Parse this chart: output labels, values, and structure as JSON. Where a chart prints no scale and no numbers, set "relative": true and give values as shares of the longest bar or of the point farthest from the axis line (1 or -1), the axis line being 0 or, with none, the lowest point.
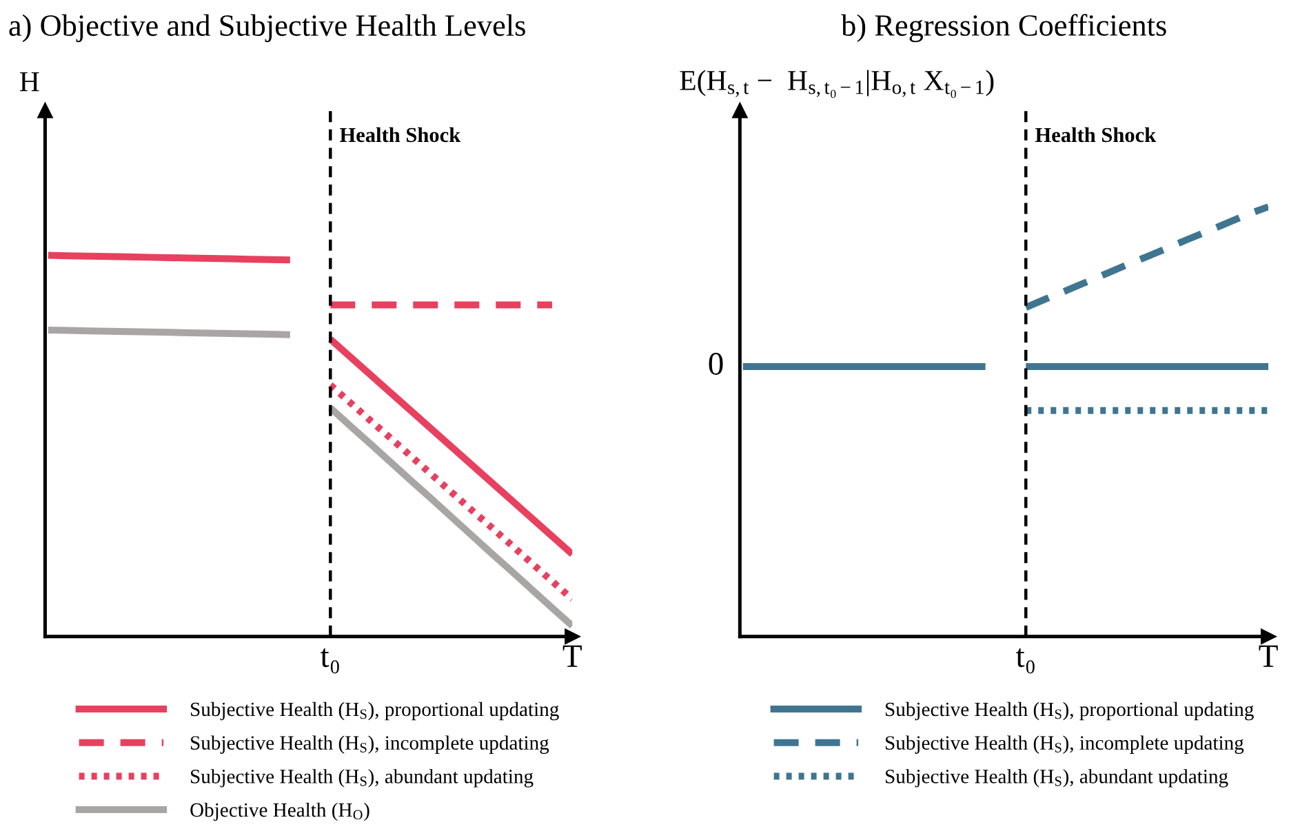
{
  "chart_data": [
    {
      "type": "line",
      "title": "a) Objective and Subjective Health Levels",
      "ylabel": "H",
      "relative": true,
      "categories": [
        null,
        null,
        null,
        null,
        null,
        null,
        null,
        null,
        null,
        null,
        null,
        null,
        null,
        null,
        "t₀",
        null,
        null,
        null,
        null,
        null,
        null,
        null,
        null,
        null,
        null,
        null,
        "T"
      ],
      "tick_labels": "x",
      "legend": "bottom",
      "grid": false,
      "ref_lines": [
        {
          "axis": "x",
          "value": "t₀",
          "label": "Health Shock",
          "color": "#000000",
          "line_style": "dashed"
        }
      ],
      "series": [
        {
          "name": "Subjective Health (H$_{S}$), proportional updating",
          "color": "#e8405f",
          "line_style": "solid",
          "values": [
            1.0,
            0.999,
            0.998,
            0.997,
            0.996,
            0.995,
            0.994,
            0.993,
            0.992,
            0.991,
            0.99,
            0.989,
            0.988,
            null,
            0.78,
            0.733,
            0.686,
            0.639,
            0.592,
            0.545,
            0.498,
            0.451,
            0.404,
            0.357,
            0.31,
            0.263,
            0.216
          ]
        },
        {
          "name": "Subjective Health (H$_{S}$), incomplete updating",
          "color": "#e8405f",
          "line_style": "dashed",
          "values": [
            null,
            null,
            null,
            null,
            null,
            null,
            null,
            null,
            null,
            null,
            null,
            null,
            null,
            null,
            0.87,
            0.87,
            0.87,
            0.87,
            0.87,
            0.87,
            0.87,
            0.87,
            0.87,
            0.87,
            0.87,
            0.87,
            null
          ]
        },
        {
          "name": "Subjective Health (H$_{S}$), abundant updating",
          "color": "#e8405f",
          "line_style": "dotted",
          "values": [
            null,
            null,
            null,
            null,
            null,
            null,
            null,
            null,
            null,
            null,
            null,
            null,
            null,
            null,
            0.66,
            0.613,
            0.566,
            0.52,
            0.473,
            0.426,
            0.379,
            0.332,
            0.286,
            0.239,
            0.192,
            0.145,
            0.098
          ]
        },
        {
          "name": "Objective Health (H$_{O}$)",
          "color": "#aaa5a5",
          "line_style": "solid",
          "values": [
            0.804,
            0.803,
            0.802,
            0.801,
            0.8,
            0.799,
            0.798,
            0.797,
            0.796,
            0.795,
            0.794,
            0.793,
            0.792,
            null,
            0.6,
            0.552,
            0.505,
            0.457,
            0.409,
            0.362,
            0.314,
            0.266,
            0.218,
            0.171,
            0.123,
            0.075,
            0.028
          ]
        }
      ]
    },
    {
      "type": "line",
      "title": "b) Regression Coefficients",
      "ylabel": "E(H$_{s,t}$ −  H$_{s,t₀−1}$|H$_{o,t}$ X$_{t₀−1}$)",
      "relative": true,
      "categories": [
        null,
        null,
        null,
        null,
        null,
        null,
        null,
        null,
        null,
        null,
        null,
        null,
        null,
        null,
        "t₀",
        null,
        null,
        null,
        null,
        null,
        null,
        null,
        null,
        null,
        null,
        null,
        "T"
      ],
      "tick_labels": "x",
      "legend": "bottom",
      "grid": false,
      "annotations": [
        "0"
      ],
      "ref_lines": [
        {
          "axis": "x",
          "value": "t₀",
          "label": "Health Shock",
          "color": "#000000",
          "line_style": "dashed"
        }
      ],
      "series": [
        {
          "name": "Subjective Health (H$_{S}$), proportional updating",
          "color": "#3f7591",
          "line_style": "solid",
          "values": [
            0.628,
            0.628,
            0.628,
            0.628,
            0.628,
            0.628,
            0.628,
            0.628,
            0.628,
            0.628,
            0.628,
            0.628,
            0.628,
            null,
            0.628,
            0.628,
            0.628,
            0.628,
            0.628,
            0.628,
            0.628,
            0.628,
            0.628,
            0.628,
            0.628,
            0.628,
            0.628
          ]
        },
        {
          "name": "Subjective Health (H$_{S}$), incomplete updating",
          "color": "#3f7591",
          "line_style": "dashed",
          "values": [
            null,
            null,
            null,
            null,
            null,
            null,
            null,
            null,
            null,
            null,
            null,
            null,
            null,
            null,
            0.766,
            0.786,
            0.805,
            0.825,
            0.845,
            0.865,
            0.884,
            0.904,
            0.924,
            0.943,
            0.963,
            0.983,
            1.0
          ]
        },
        {
          "name": "Subjective Health (H$_{S}$), abundant updating",
          "color": "#3f7591",
          "line_style": "dotted",
          "values": [
            null,
            null,
            null,
            null,
            null,
            null,
            null,
            null,
            null,
            null,
            null,
            null,
            null,
            null,
            0.526,
            0.526,
            0.526,
            0.526,
            0.526,
            0.526,
            0.526,
            0.526,
            0.526,
            0.526,
            0.526,
            0.526,
            0.526
          ]
        }
      ]
    }
  ]
}
